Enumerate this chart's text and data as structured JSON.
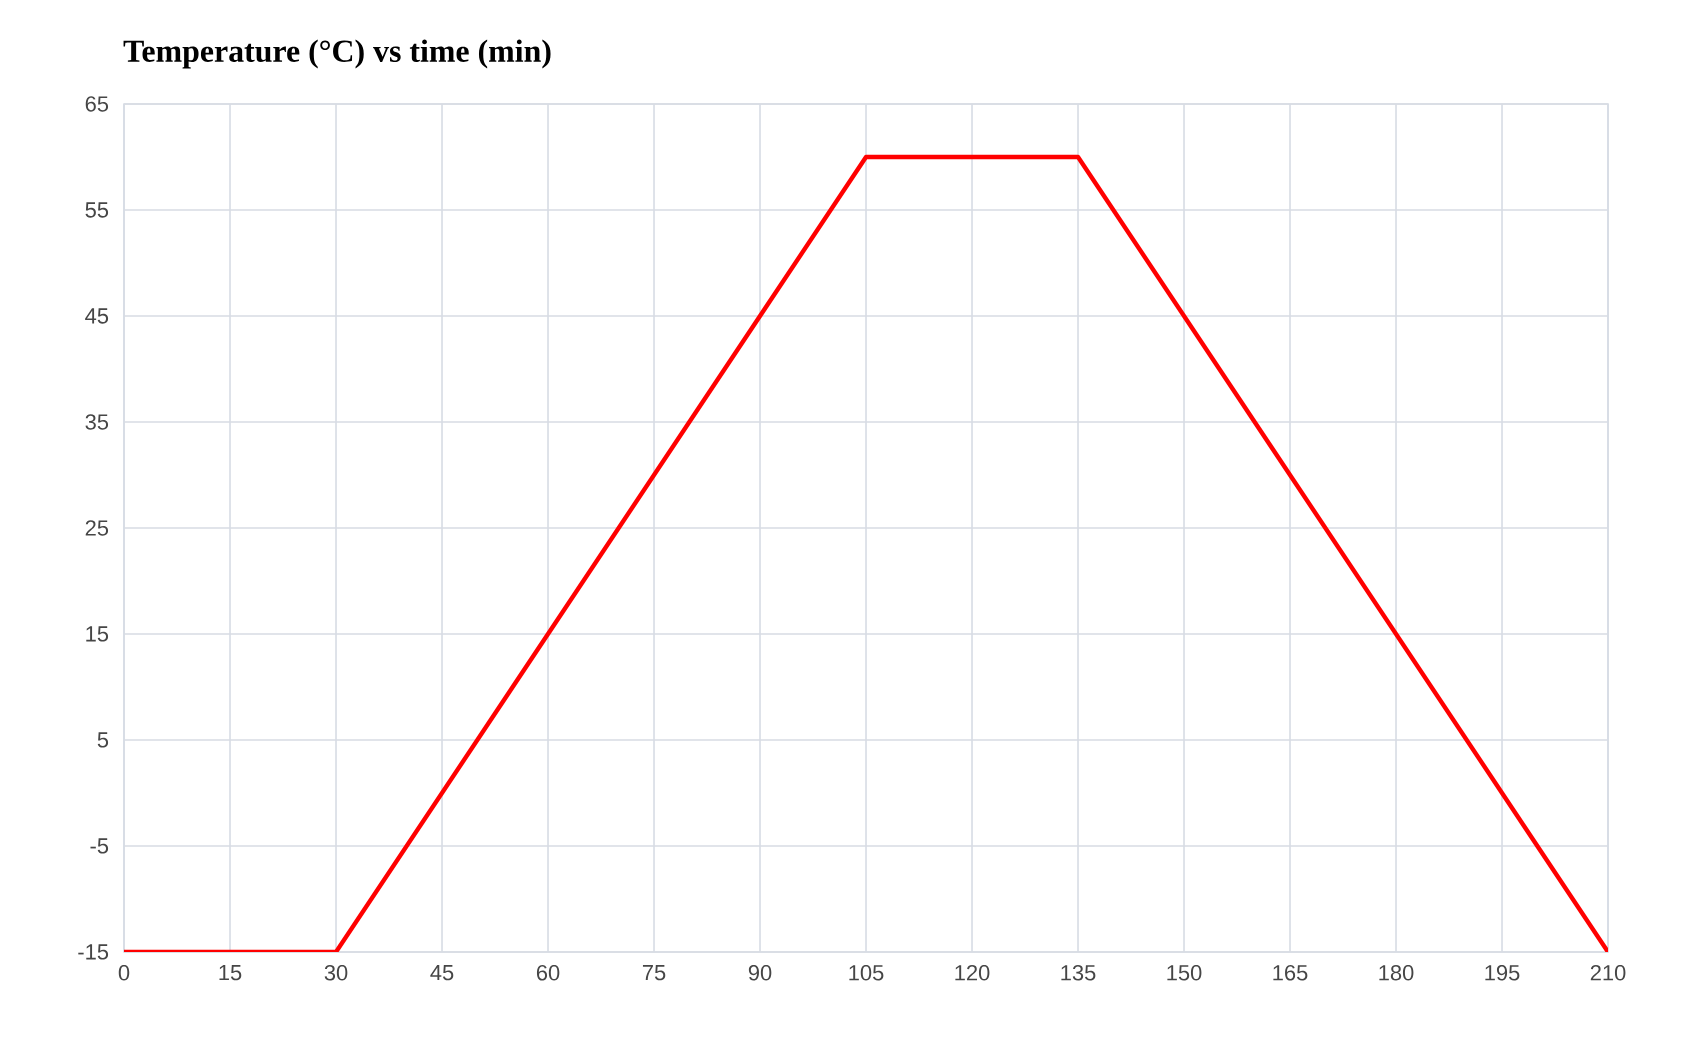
{
  "chart_data": {
    "type": "line",
    "title": "Temperature (°C) vs time (min)",
    "x": [
      0,
      30,
      105,
      135,
      210
    ],
    "series": [
      {
        "color": "#ff0000",
        "values": [
          -15,
          -15,
          60,
          60,
          -15
        ]
      }
    ],
    "xlim": [
      0,
      210
    ],
    "xticks": [
      0,
      15,
      30,
      45,
      60,
      75,
      90,
      105,
      120,
      135,
      150,
      165,
      180,
      195,
      210
    ],
    "ylim": [
      -15,
      65
    ],
    "yticks": [
      -15,
      -5,
      5,
      15,
      25,
      35,
      45,
      55,
      65
    ],
    "grid": true,
    "marker": "none",
    "line_style": "solid"
  }
}
